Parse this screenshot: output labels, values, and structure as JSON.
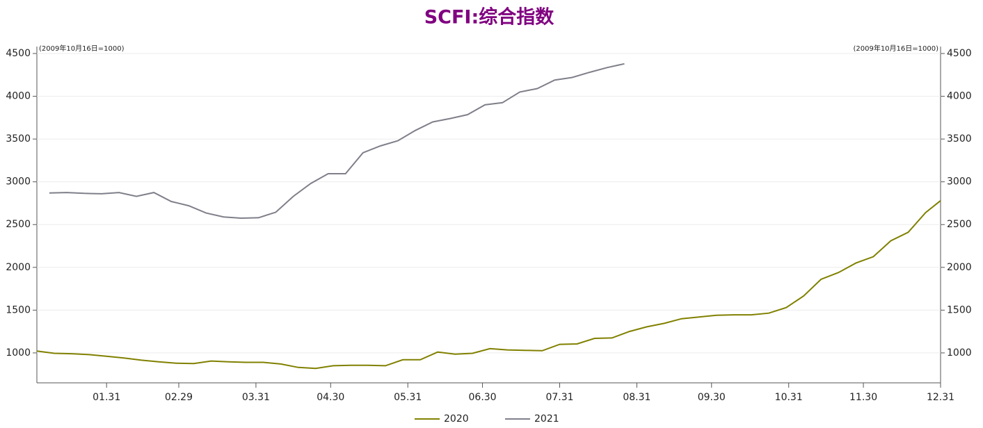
{
  "chart_data": {
    "type": "line",
    "title": "SCFI:综合指数",
    "y_note": "(2009年10月16日=1000)",
    "y2_note": "(2009年10月16日=1000)",
    "xlim": [
      3,
      366
    ],
    "xticks": [
      {
        "value": 31,
        "label": "01.31"
      },
      {
        "value": 60,
        "label": "02.29"
      },
      {
        "value": 91,
        "label": "03.31"
      },
      {
        "value": 121,
        "label": "04.30"
      },
      {
        "value": 152,
        "label": "05.31"
      },
      {
        "value": 182,
        "label": "06.30"
      },
      {
        "value": 213,
        "label": "07.31"
      },
      {
        "value": 244,
        "label": "08.31"
      },
      {
        "value": 274,
        "label": "09.30"
      },
      {
        "value": 305,
        "label": "10.31"
      },
      {
        "value": 335,
        "label": "11.30"
      },
      {
        "value": 366,
        "label": "12.31"
      }
    ],
    "ylim": [
      650,
      4500
    ],
    "yticks": [
      1000,
      1500,
      2000,
      2500,
      3000,
      3500,
      4000,
      4500
    ],
    "y2lim": [
      650,
      4500
    ],
    "y2ticks": [
      1000,
      1500,
      2000,
      2500,
      3000,
      3500,
      4000,
      4500
    ],
    "grid": true,
    "series": [
      {
        "name": "2020",
        "color": "#808000",
        "x": [
          3,
          10,
          17,
          24,
          31,
          38,
          45,
          52,
          59,
          66,
          73,
          80,
          87,
          94,
          101,
          108,
          115,
          122,
          129,
          136,
          143,
          150,
          157,
          164,
          171,
          178,
          185,
          192,
          199,
          206,
          213,
          220,
          227,
          234,
          241,
          248,
          255,
          262,
          269,
          276,
          283,
          290,
          297,
          304,
          311,
          318,
          325,
          332,
          339,
          346,
          353,
          360,
          366
        ],
        "values": [
          1022,
          995,
          990,
          980,
          960,
          940,
          915,
          895,
          880,
          875,
          905,
          895,
          890,
          890,
          870,
          830,
          818,
          850,
          855,
          855,
          850,
          920,
          920,
          1010,
          985,
          995,
          1050,
          1035,
          1030,
          1025,
          1100,
          1105,
          1170,
          1175,
          1250,
          1305,
          1345,
          1400,
          1420,
          1440,
          1445,
          1445,
          1465,
          1530,
          1665,
          1860,
          1940,
          2050,
          2125,
          2310,
          2410,
          2640,
          2780
        ]
      },
      {
        "name": "2021",
        "color": "#7f7f8a",
        "x": [
          8,
          15,
          22,
          29,
          36,
          43,
          50,
          57,
          64,
          71,
          78,
          85,
          92,
          99,
          106,
          113,
          120,
          127,
          134,
          141,
          148,
          155,
          162,
          169,
          176,
          183,
          190,
          197,
          204,
          211,
          218,
          225,
          232,
          239
        ],
        "values": [
          2870,
          2875,
          2865,
          2860,
          2875,
          2830,
          2875,
          2770,
          2720,
          2635,
          2590,
          2575,
          2580,
          2645,
          2830,
          2980,
          3095,
          3095,
          3340,
          3420,
          3480,
          3600,
          3700,
          3740,
          3785,
          3900,
          3925,
          4050,
          4090,
          4190,
          4220,
          4280,
          4335,
          4380
        ]
      }
    ]
  }
}
